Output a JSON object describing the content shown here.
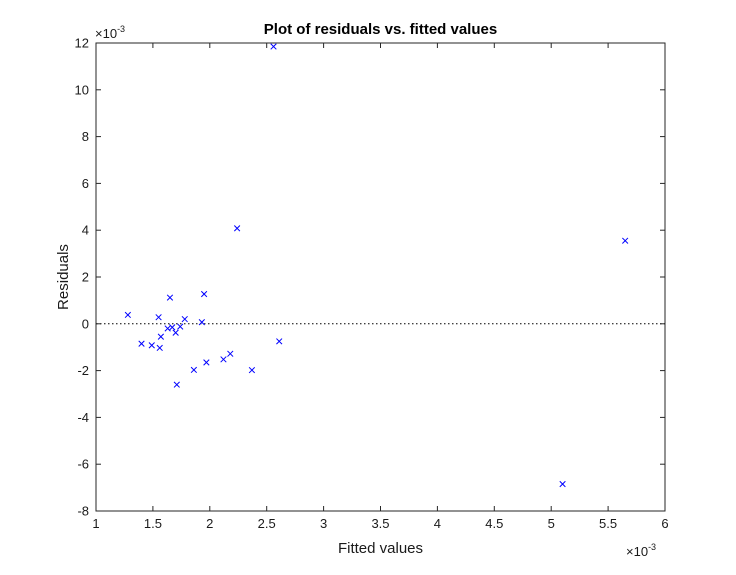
{
  "chart_data": {
    "type": "scatter",
    "title": "Plot of residuals vs. fitted values",
    "xlabel": "Fitted values",
    "ylabel": "Residuals",
    "x_multiplier": {
      "base": "×10",
      "exponent": "-3"
    },
    "y_multiplier": {
      "base": "×10",
      "exponent": "-3"
    },
    "xlim": [
      1,
      6
    ],
    "ylim": [
      -8,
      12
    ],
    "x_ticks": [
      "1",
      "1.5",
      "2",
      "2.5",
      "3",
      "3.5",
      "4",
      "4.5",
      "5",
      "5.5",
      "6"
    ],
    "y_ticks": [
      "-8",
      "-6",
      "-4",
      "-2",
      "0",
      "2",
      "4",
      "6",
      "8",
      "10",
      "12"
    ],
    "marker": "x",
    "marker_color": "#0000ff",
    "zero_line": {
      "style": "dotted",
      "y": 0,
      "color": "#000000"
    },
    "grid": false,
    "points": [
      {
        "x": 1.28,
        "y": 0.38
      },
      {
        "x": 1.4,
        "y": -0.85
      },
      {
        "x": 1.49,
        "y": -0.92
      },
      {
        "x": 1.55,
        "y": 0.28
      },
      {
        "x": 1.56,
        "y": -1.03
      },
      {
        "x": 1.57,
        "y": -0.55
      },
      {
        "x": 1.63,
        "y": -0.2
      },
      {
        "x": 1.65,
        "y": 1.12
      },
      {
        "x": 1.67,
        "y": -0.15
      },
      {
        "x": 1.7,
        "y": -0.38
      },
      {
        "x": 1.71,
        "y": -2.6
      },
      {
        "x": 1.74,
        "y": -0.12
      },
      {
        "x": 1.78,
        "y": 0.2
      },
      {
        "x": 1.86,
        "y": -1.97
      },
      {
        "x": 1.93,
        "y": 0.07
      },
      {
        "x": 1.95,
        "y": 1.27
      },
      {
        "x": 1.97,
        "y": -1.65
      },
      {
        "x": 2.12,
        "y": -1.52
      },
      {
        "x": 2.18,
        "y": -1.28
      },
      {
        "x": 2.24,
        "y": 4.08
      },
      {
        "x": 2.37,
        "y": -1.98
      },
      {
        "x": 2.56,
        "y": 11.85
      },
      {
        "x": 2.61,
        "y": -0.75
      },
      {
        "x": 5.1,
        "y": -6.85
      },
      {
        "x": 5.65,
        "y": 3.55
      }
    ]
  }
}
